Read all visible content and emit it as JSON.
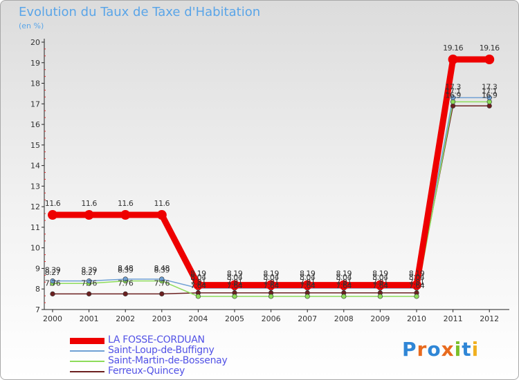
{
  "page": {
    "title": "Evolution du Taux de Taxe d'Habitation",
    "subtitle": "(en %)"
  },
  "brand": {
    "logo_letters": [
      "P",
      "r",
      "o",
      "x",
      "i",
      "t",
      "i"
    ],
    "logo_colors": [
      "#2f86d6",
      "#e86a1e",
      "#2f86d6",
      "#e86a1e",
      "#7bbf2a",
      "#2f86d6",
      "#f0b020"
    ]
  },
  "chart_data": {
    "type": "line",
    "title": "Evolution du Taux de Taxe d'Habitation",
    "ylabel": "(en %)",
    "xlabel": "",
    "ylim": [
      7,
      20
    ],
    "yticks": [
      7,
      8,
      9,
      10,
      11,
      12,
      13,
      14,
      15,
      16,
      17,
      18,
      19,
      20
    ],
    "categories": [
      "2000",
      "2001",
      "2002",
      "2003",
      "2004",
      "2005",
      "2006",
      "2007",
      "2008",
      "2009",
      "2010",
      "2011",
      "2012"
    ],
    "grid": false,
    "legend_position": "bottom-left",
    "series": [
      {
        "name": "Ferreux-Quincey",
        "color": "#6b1f1f",
        "values": [
          7.76,
          7.76,
          7.76,
          7.76,
          7.81,
          7.81,
          7.81,
          7.81,
          7.81,
          7.81,
          7.81,
          16.9,
          16.9
        ],
        "labels": [
          "7.76",
          "7.76",
          "7.76",
          "7.76",
          "7.81",
          "7.81",
          "7.81",
          "7.81",
          "7.81",
          "7.81",
          "7.81",
          "16.9",
          "16.9"
        ]
      },
      {
        "name": "Saint-Martin-de-Bossenay",
        "color": "#8ddc5a",
        "values": [
          8.27,
          8.27,
          8.39,
          8.39,
          7.64,
          7.64,
          7.64,
          7.64,
          7.64,
          7.64,
          7.64,
          17.1,
          17.1
        ],
        "labels": [
          "8.27",
          "8.27",
          "8.39",
          "8.39",
          "7.64",
          "7.64",
          "7.64",
          "7.64",
          "7.64",
          "7.64",
          "7.64",
          "17.1",
          "17.1"
        ]
      },
      {
        "name": "Saint-Loup-de-Buffigny",
        "color": "#6fa0d4",
        "values": [
          8.39,
          8.39,
          8.48,
          8.48,
          8.04,
          8.04,
          8.04,
          8.04,
          8.04,
          8.04,
          8.04,
          17.3,
          17.3
        ],
        "labels": [
          "8.39",
          "8.39",
          "8.48",
          "8.48",
          "8.04",
          "8.04",
          "8.04",
          "8.04",
          "8.04",
          "8.04",
          "8.04",
          "17.3",
          "17.3"
        ]
      },
      {
        "name": "LA FOSSE-CORDUAN",
        "color": "#ee0000",
        "values": [
          11.6,
          11.6,
          11.6,
          11.6,
          8.19,
          8.19,
          8.19,
          8.19,
          8.19,
          8.19,
          8.19,
          19.16,
          19.16
        ],
        "labels": [
          "11.6",
          "11.6",
          "11.6",
          "11.6",
          "8.19",
          "8.19",
          "8.19",
          "8.19",
          "8.19",
          "8.19",
          "8.19",
          "19.16",
          "19.16"
        ]
      }
    ],
    "legend_order": [
      "LA FOSSE-CORDUAN",
      "Saint-Loup-de-Buffigny",
      "Saint-Martin-de-Bossenay",
      "Ferreux-Quincey"
    ]
  }
}
